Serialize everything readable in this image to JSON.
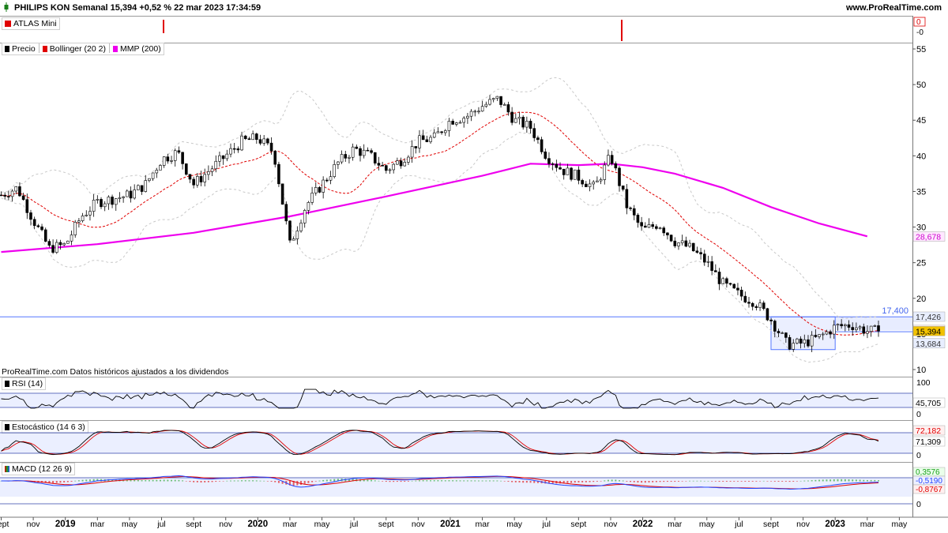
{
  "header": {
    "title": "PHILIPS KON Semanal 15,394 +0,52 % 22 mar 2023 17:34:59",
    "brand": "www.ProRealTime.com"
  },
  "atlas": {
    "label": "ATLAS Mini",
    "axis_labels": [
      "0",
      "-0"
    ]
  },
  "price_panel": {
    "legend": [
      {
        "label": "Precio",
        "color": "#000000"
      },
      {
        "label": "Bollinger (20 2)",
        "color": "#e00000"
      },
      {
        "label": "MMP (200)",
        "color": "#ee00ee"
      }
    ],
    "note": "ProRealTime.com  Datos históricos ajustados a los dividendos",
    "level_label": "17,400",
    "price_tags": [
      "17,426",
      "15,556",
      "15,394",
      "13,684",
      "28,678"
    ]
  },
  "rsi_panel": {
    "legend": "RSI (14)",
    "tick_labels": [
      "100",
      "45,705",
      "0"
    ]
  },
  "stoch_panel": {
    "legend": "Estocástico (14 6 3)",
    "tick_labels": [
      "72,182",
      "71,309",
      "0"
    ]
  },
  "macd_panel": {
    "legend": "MACD (12 26 9)",
    "tick_labels": [
      "0,3576",
      "-0,5190",
      "-0,8767",
      "0"
    ]
  },
  "chart_data": {
    "type": "candlestick",
    "title": "PHILIPS KON Semanal",
    "ylim": [
      10,
      55
    ],
    "yticks": [
      10,
      15,
      20,
      25,
      30,
      35,
      40,
      45,
      50,
      55
    ],
    "grid": false,
    "x_tick_labels": [
      "sept",
      "nov",
      "2019",
      "mar",
      "may",
      "jul",
      "sept",
      "nov",
      "2020",
      "mar",
      "may",
      "jul",
      "sept",
      "nov",
      "2021",
      "mar",
      "may",
      "jul",
      "sept",
      "nov",
      "2022",
      "mar",
      "may",
      "jul",
      "sept",
      "nov",
      "2023",
      "mar",
      "may"
    ],
    "close_path": [
      [
        "2018-09",
        34.5
      ],
      [
        "2018-10",
        35.5
      ],
      [
        "2018-11",
        31
      ],
      [
        "2018-12",
        27
      ],
      [
        "2019-01",
        27.5
      ],
      [
        "2019-02",
        31.5
      ],
      [
        "2019-03",
        33.5
      ],
      [
        "2019-04",
        34
      ],
      [
        "2019-05",
        34.5
      ],
      [
        "2019-06",
        36
      ],
      [
        "2019-07",
        39.5
      ],
      [
        "2019-08",
        40.5
      ],
      [
        "2019-09",
        36
      ],
      [
        "2019-10",
        38
      ],
      [
        "2019-11",
        40
      ],
      [
        "2019-12",
        42
      ],
      [
        "2020-01",
        42.5
      ],
      [
        "2020-02",
        40.5
      ],
      [
        "2020-03",
        27.5
      ],
      [
        "2020-04",
        33
      ],
      [
        "2020-05",
        36
      ],
      [
        "2020-06",
        39
      ],
      [
        "2020-07",
        41
      ],
      [
        "2020-08",
        40
      ],
      [
        "2020-09",
        38
      ],
      [
        "2020-10",
        39.5
      ],
      [
        "2020-11",
        42
      ],
      [
        "2020-12",
        42.5
      ],
      [
        "2021-01",
        45
      ],
      [
        "2021-02",
        45.5
      ],
      [
        "2021-03",
        47
      ],
      [
        "2021-04",
        48
      ],
      [
        "2021-05",
        45
      ],
      [
        "2021-06",
        44
      ],
      [
        "2021-07",
        40
      ],
      [
        "2021-08",
        38
      ],
      [
        "2021-09",
        37
      ],
      [
        "2021-10",
        35.5
      ],
      [
        "2021-11",
        40
      ],
      [
        "2021-12",
        33
      ],
      [
        "2022-01",
        29.5
      ],
      [
        "2022-02",
        30.5
      ],
      [
        "2022-03",
        28
      ],
      [
        "2022-04",
        27
      ],
      [
        "2022-05",
        25
      ],
      [
        "2022-06",
        22
      ],
      [
        "2022-07",
        20.5
      ],
      [
        "2022-08",
        19.5
      ],
      [
        "2022-09",
        17
      ],
      [
        "2022-10",
        13.5
      ],
      [
        "2022-11",
        13.7
      ],
      [
        "2022-12",
        14.5
      ],
      [
        "2023-01",
        16
      ],
      [
        "2023-02",
        16.3
      ],
      [
        "2023-03",
        15.4
      ]
    ],
    "series": [
      {
        "name": "MMP (200)",
        "color": "#ee00ee",
        "x": [
          "2018-09",
          "2019-03",
          "2019-09",
          "2020-03",
          "2020-09",
          "2021-03",
          "2021-06",
          "2021-09",
          "2021-11",
          "2022-01",
          "2022-03",
          "2022-06",
          "2022-09",
          "2022-12",
          "2023-03"
        ],
        "values": [
          26.5,
          27.6,
          29.2,
          31.5,
          34.3,
          37.2,
          38.9,
          38.7,
          38.9,
          38.4,
          37.5,
          35.5,
          32.8,
          30.5,
          28.7
        ]
      },
      {
        "name": "Bollinger (20 2)",
        "color": "#e00000"
      }
    ],
    "last_close": 15.394,
    "level": 17.4,
    "range_box": {
      "x": [
        "2022-09",
        "2023-01"
      ],
      "y": [
        12.8,
        17.4
      ]
    }
  }
}
